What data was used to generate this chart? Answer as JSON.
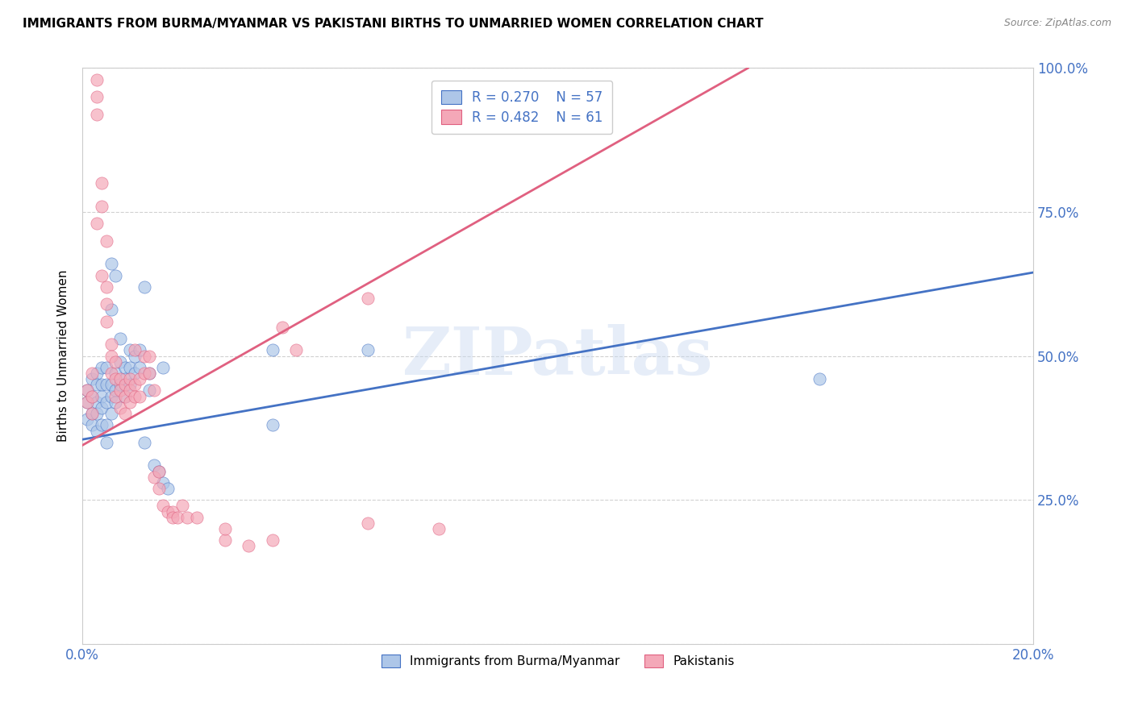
{
  "title": "IMMIGRANTS FROM BURMA/MYANMAR VS PAKISTANI BIRTHS TO UNMARRIED WOMEN CORRELATION CHART",
  "source": "Source: ZipAtlas.com",
  "ylabel": "Births to Unmarried Women",
  "xlim": [
    0.0,
    0.2
  ],
  "ylim": [
    0.0,
    1.0
  ],
  "blue_color": "#adc6e8",
  "pink_color": "#f4a8b8",
  "blue_line_color": "#4472c4",
  "pink_line_color": "#e06080",
  "legend_text_color": "#4472c4",
  "axis_label_color": "#4472c4",
  "watermark": "ZIPatlas",
  "legend": {
    "R_blue": "0.270",
    "N_blue": "57",
    "R_pink": "0.482",
    "N_pink": "61"
  },
  "blue_scatter": [
    [
      0.001,
      0.44
    ],
    [
      0.001,
      0.42
    ],
    [
      0.001,
      0.39
    ],
    [
      0.002,
      0.46
    ],
    [
      0.002,
      0.43
    ],
    [
      0.002,
      0.4
    ],
    [
      0.002,
      0.38
    ],
    [
      0.003,
      0.47
    ],
    [
      0.003,
      0.45
    ],
    [
      0.003,
      0.42
    ],
    [
      0.003,
      0.4
    ],
    [
      0.003,
      0.37
    ],
    [
      0.004,
      0.48
    ],
    [
      0.004,
      0.45
    ],
    [
      0.004,
      0.43
    ],
    [
      0.004,
      0.41
    ],
    [
      0.004,
      0.38
    ],
    [
      0.005,
      0.48
    ],
    [
      0.005,
      0.45
    ],
    [
      0.005,
      0.42
    ],
    [
      0.005,
      0.38
    ],
    [
      0.005,
      0.35
    ],
    [
      0.006,
      0.66
    ],
    [
      0.006,
      0.58
    ],
    [
      0.006,
      0.45
    ],
    [
      0.006,
      0.43
    ],
    [
      0.006,
      0.4
    ],
    [
      0.007,
      0.64
    ],
    [
      0.007,
      0.47
    ],
    [
      0.007,
      0.44
    ],
    [
      0.007,
      0.42
    ],
    [
      0.008,
      0.53
    ],
    [
      0.008,
      0.49
    ],
    [
      0.008,
      0.45
    ],
    [
      0.009,
      0.48
    ],
    [
      0.009,
      0.46
    ],
    [
      0.009,
      0.43
    ],
    [
      0.01,
      0.51
    ],
    [
      0.01,
      0.48
    ],
    [
      0.01,
      0.45
    ],
    [
      0.011,
      0.5
    ],
    [
      0.011,
      0.47
    ],
    [
      0.012,
      0.51
    ],
    [
      0.012,
      0.48
    ],
    [
      0.013,
      0.62
    ],
    [
      0.013,
      0.35
    ],
    [
      0.014,
      0.47
    ],
    [
      0.014,
      0.44
    ],
    [
      0.015,
      0.31
    ],
    [
      0.016,
      0.3
    ],
    [
      0.017,
      0.48
    ],
    [
      0.017,
      0.28
    ],
    [
      0.018,
      0.27
    ],
    [
      0.04,
      0.51
    ],
    [
      0.04,
      0.38
    ],
    [
      0.06,
      0.51
    ],
    [
      0.155,
      0.46
    ]
  ],
  "pink_scatter": [
    [
      0.001,
      0.44
    ],
    [
      0.001,
      0.42
    ],
    [
      0.002,
      0.47
    ],
    [
      0.002,
      0.43
    ],
    [
      0.002,
      0.4
    ],
    [
      0.003,
      0.98
    ],
    [
      0.003,
      0.95
    ],
    [
      0.003,
      0.92
    ],
    [
      0.003,
      0.73
    ],
    [
      0.004,
      0.8
    ],
    [
      0.004,
      0.76
    ],
    [
      0.004,
      0.64
    ],
    [
      0.005,
      0.7
    ],
    [
      0.005,
      0.62
    ],
    [
      0.005,
      0.59
    ],
    [
      0.005,
      0.56
    ],
    [
      0.006,
      0.52
    ],
    [
      0.006,
      0.5
    ],
    [
      0.006,
      0.47
    ],
    [
      0.007,
      0.49
    ],
    [
      0.007,
      0.46
    ],
    [
      0.007,
      0.43
    ],
    [
      0.008,
      0.46
    ],
    [
      0.008,
      0.44
    ],
    [
      0.008,
      0.41
    ],
    [
      0.009,
      0.45
    ],
    [
      0.009,
      0.43
    ],
    [
      0.009,
      0.4
    ],
    [
      0.01,
      0.46
    ],
    [
      0.01,
      0.44
    ],
    [
      0.01,
      0.42
    ],
    [
      0.011,
      0.45
    ],
    [
      0.011,
      0.43
    ],
    [
      0.011,
      0.51
    ],
    [
      0.012,
      0.46
    ],
    [
      0.012,
      0.43
    ],
    [
      0.013,
      0.5
    ],
    [
      0.013,
      0.47
    ],
    [
      0.014,
      0.5
    ],
    [
      0.014,
      0.47
    ],
    [
      0.015,
      0.44
    ],
    [
      0.015,
      0.29
    ],
    [
      0.016,
      0.3
    ],
    [
      0.016,
      0.27
    ],
    [
      0.017,
      0.24
    ],
    [
      0.018,
      0.23
    ],
    [
      0.019,
      0.23
    ],
    [
      0.019,
      0.22
    ],
    [
      0.02,
      0.22
    ],
    [
      0.021,
      0.24
    ],
    [
      0.022,
      0.22
    ],
    [
      0.024,
      0.22
    ],
    [
      0.03,
      0.18
    ],
    [
      0.03,
      0.2
    ],
    [
      0.035,
      0.17
    ],
    [
      0.04,
      0.18
    ],
    [
      0.042,
      0.55
    ],
    [
      0.045,
      0.51
    ],
    [
      0.06,
      0.6
    ],
    [
      0.06,
      0.21
    ],
    [
      0.075,
      0.2
    ]
  ],
  "blue_trendline": [
    0.0,
    0.2,
    0.355,
    0.645
  ],
  "pink_trendline": [
    0.0,
    0.14,
    0.345,
    1.0
  ]
}
